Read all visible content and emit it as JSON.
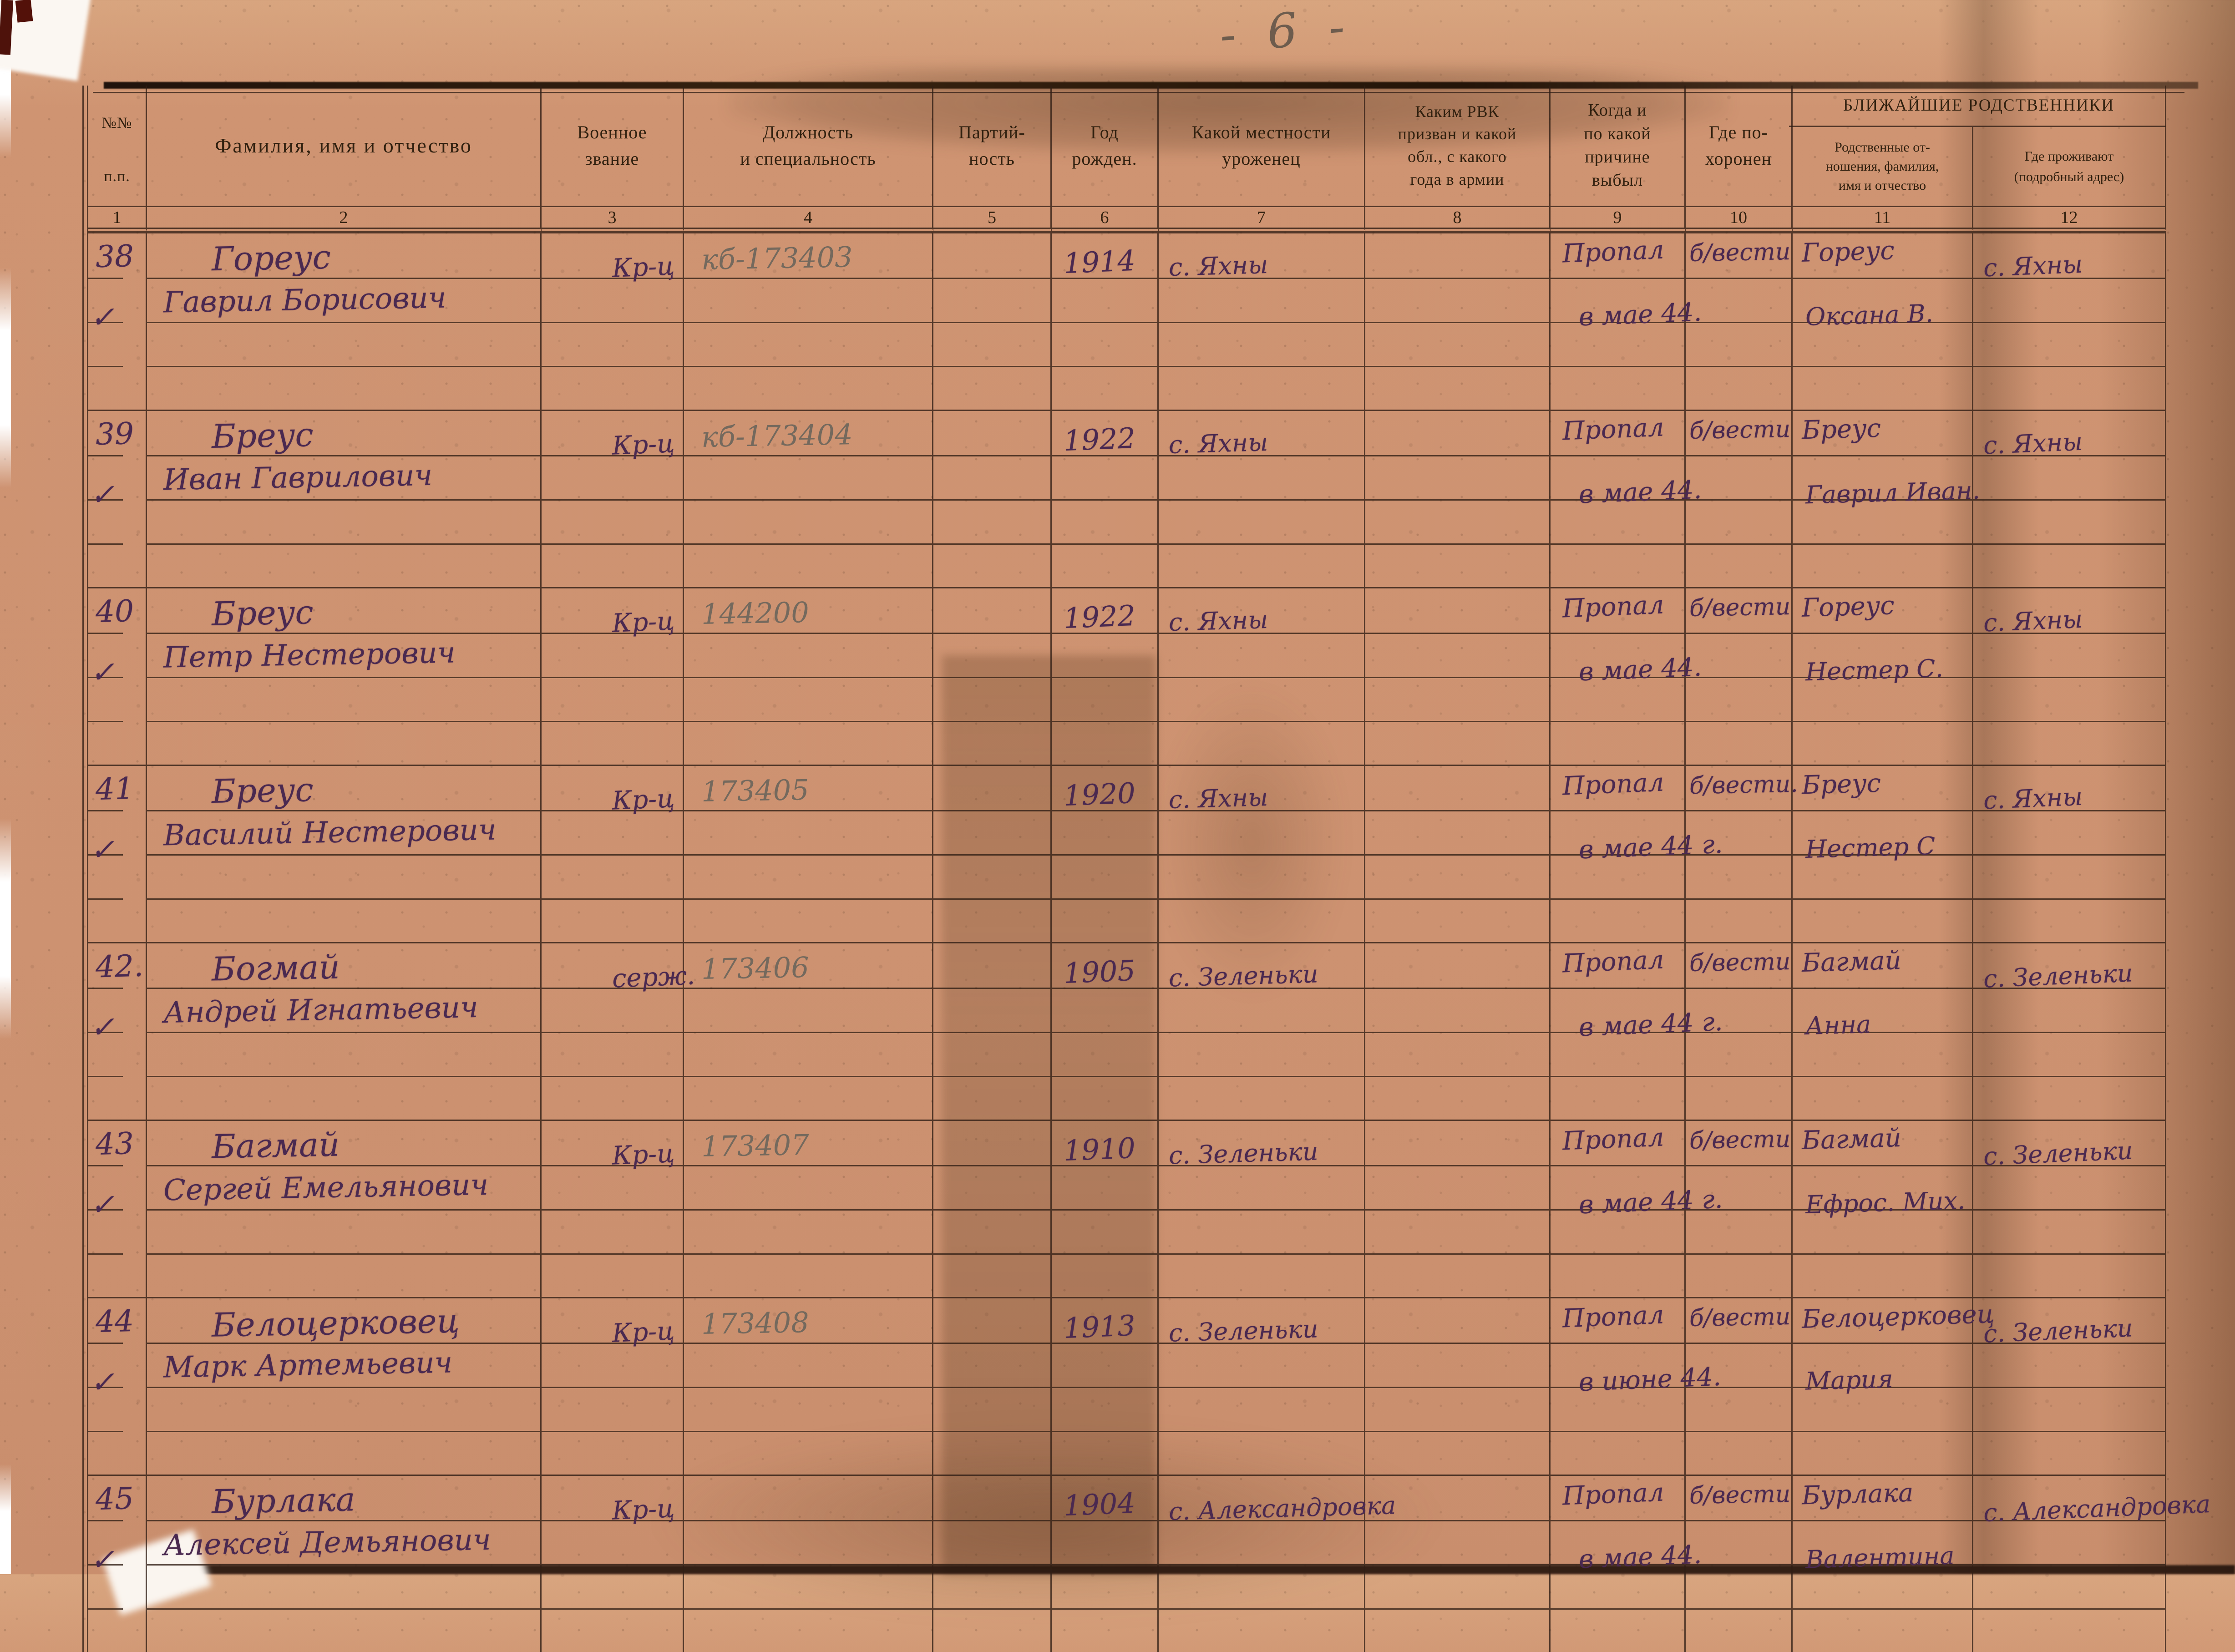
{
  "page": {
    "number": "- 6 -"
  },
  "table": {
    "header": {
      "col1": [
        "№№",
        "п.п."
      ],
      "col2": "Фамилия, имя и отчество",
      "col3": [
        "Военное",
        "звание"
      ],
      "col4": [
        "Должность",
        "и специальность"
      ],
      "col5": [
        "Партий-",
        "ность"
      ],
      "col6": [
        "Год",
        "рожден."
      ],
      "col7": [
        "Какой местности",
        "уроженец"
      ],
      "col8": [
        "Каким РВК",
        "призван и какой",
        "обл., с какого",
        "года в армии"
      ],
      "col9": [
        "Когда и",
        "по какой",
        "причине",
        "выбыл"
      ],
      "col10": [
        "Где по-",
        "хоронен"
      ],
      "relatives_group": "БЛИЖАЙШИЕ РОДСТВЕННИКИ",
      "col11": [
        "Родственные от-",
        "ношения, фамилия,",
        "имя и отчество"
      ],
      "col12": [
        "Где проживают",
        "(подробный адрес)"
      ]
    },
    "column_numbers": [
      "1",
      "2",
      "3",
      "4",
      "5",
      "6",
      "7",
      "8",
      "9",
      "10",
      "11",
      "12"
    ],
    "rows": [
      {
        "num": "38",
        "check": "✓",
        "surname": "Гореус",
        "name": "Гаврил Борисович",
        "rank": "Кр-ц",
        "position": "кб-173403",
        "year": "1914",
        "birthplace": "с. Яхны",
        "fate1": "Пропал",
        "fate2": "в мае 44.",
        "status": "б/вести",
        "rel1": "Гореус",
        "rel2": "Оксана В.",
        "address": "с. Яхны"
      },
      {
        "num": "39",
        "check": "✓",
        "surname": "Бреус",
        "name": "Иван Гаврилович",
        "rank": "Кр-ц",
        "position": "кб-173404",
        "year": "1922",
        "birthplace": "с. Яхны",
        "fate1": "Пропал",
        "fate2": "в мае 44.",
        "status": "б/вести",
        "rel1": "Бреус",
        "rel2": "Гаврил Иван.",
        "address": "с. Яхны"
      },
      {
        "num": "40",
        "check": "✓",
        "surname": "Бреус",
        "name": "Петр Нестерович",
        "rank": "Кр-ц",
        "position": "144200",
        "year": "1922",
        "birthplace": "с. Яхны",
        "fate1": "Пропал",
        "fate2": "в мае 44.",
        "status": "б/вести",
        "rel1": "Гореус",
        "rel2": "Нестер С.",
        "address": "с. Яхны"
      },
      {
        "num": "41",
        "check": "✓",
        "surname": "Бреус",
        "name": "Василий Нестерович",
        "rank": "Кр-ц",
        "position": "173405",
        "year": "1920",
        "birthplace": "с. Яхны",
        "fate1": "Пропал",
        "fate2": "в мае 44 г.",
        "status": "б/вести.",
        "rel1": "Бреус",
        "rel2": "Нестер С",
        "address": "с. Яхны"
      },
      {
        "num": "42.",
        "check": "✓",
        "surname": "Богмай",
        "name": "Андрей Игнатьевич",
        "rank": "серж.",
        "position": "173406",
        "year": "1905",
        "birthplace": "с. Зеленьки",
        "fate1": "Пропал",
        "fate2": "в мае 44 г.",
        "status": "б/вести",
        "rel1": "Багмай",
        "rel2": "Анна",
        "address": "с. Зеленьки"
      },
      {
        "num": "43",
        "check": "✓",
        "surname": "Багмай",
        "name": "Сергей Емельянович",
        "rank": "Кр-ц",
        "position": "173407",
        "year": "1910",
        "birthplace": "с. Зеленьки",
        "fate1": "Пропал",
        "fate2": "в мае 44 г.",
        "status": "б/вести",
        "rel1": "Багмай",
        "rel2": "Ефрос. Мих.",
        "address": "с. Зеленьки"
      },
      {
        "num": "44",
        "check": "✓",
        "surname": "Белоцерковец",
        "name": "Марк Артемьевич",
        "rank": "Кр-ц",
        "position": "173408",
        "year": "1913",
        "birthplace": "с. Зеленьки",
        "fate1": "Пропал",
        "fate2": "в июне 44.",
        "status": "б/вести",
        "rel1": "Белоцерковец",
        "rel2": "Мария",
        "address": "с. Зеленьки"
      },
      {
        "num": "45",
        "check": "✓",
        "surname": "Бурлака",
        "name": "Алексей Демьянович",
        "rank": "Кр-ц",
        "position": "",
        "year": "1904",
        "birthplace": "с. Александровка",
        "fate1": "Пропал",
        "fate2": "в мае 44.",
        "status": "б/вести",
        "rel1": "Бурлака",
        "rel2": "Валентина",
        "address": "с. Александровка"
      }
    ]
  }
}
